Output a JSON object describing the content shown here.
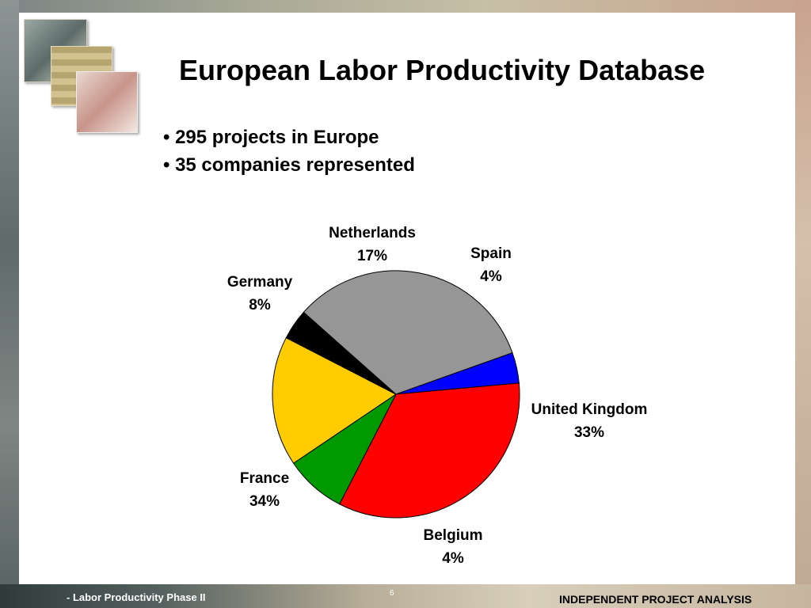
{
  "slide": {
    "title": "European Labor Productivity Database",
    "bullets": [
      "• 295 projects in Europe",
      "• 35 companies represented"
    ]
  },
  "footer": {
    "left_text": "- Labor Productivity Phase II",
    "page_number": "6",
    "right_text": "INDEPENDENT PROJECT ANALYSIS"
  },
  "chart_data": {
    "type": "pie",
    "title": "",
    "slices": [
      {
        "label": "Netherlands",
        "value": 17,
        "value_label": "17%",
        "color": "#ffcc00"
      },
      {
        "label": "Spain",
        "value": 4,
        "value_label": "4%",
        "color": "#000000"
      },
      {
        "label": "United Kingdom",
        "value": 33,
        "value_label": "33%",
        "color": "#969696"
      },
      {
        "label": "Belgium",
        "value": 4,
        "value_label": "4%",
        "color": "#0000ff"
      },
      {
        "label": "France",
        "value": 34,
        "value_label": "34%",
        "color": "#ff0000"
      },
      {
        "label": "Germany",
        "value": 8,
        "value_label": "8%",
        "color": "#009900"
      }
    ]
  }
}
